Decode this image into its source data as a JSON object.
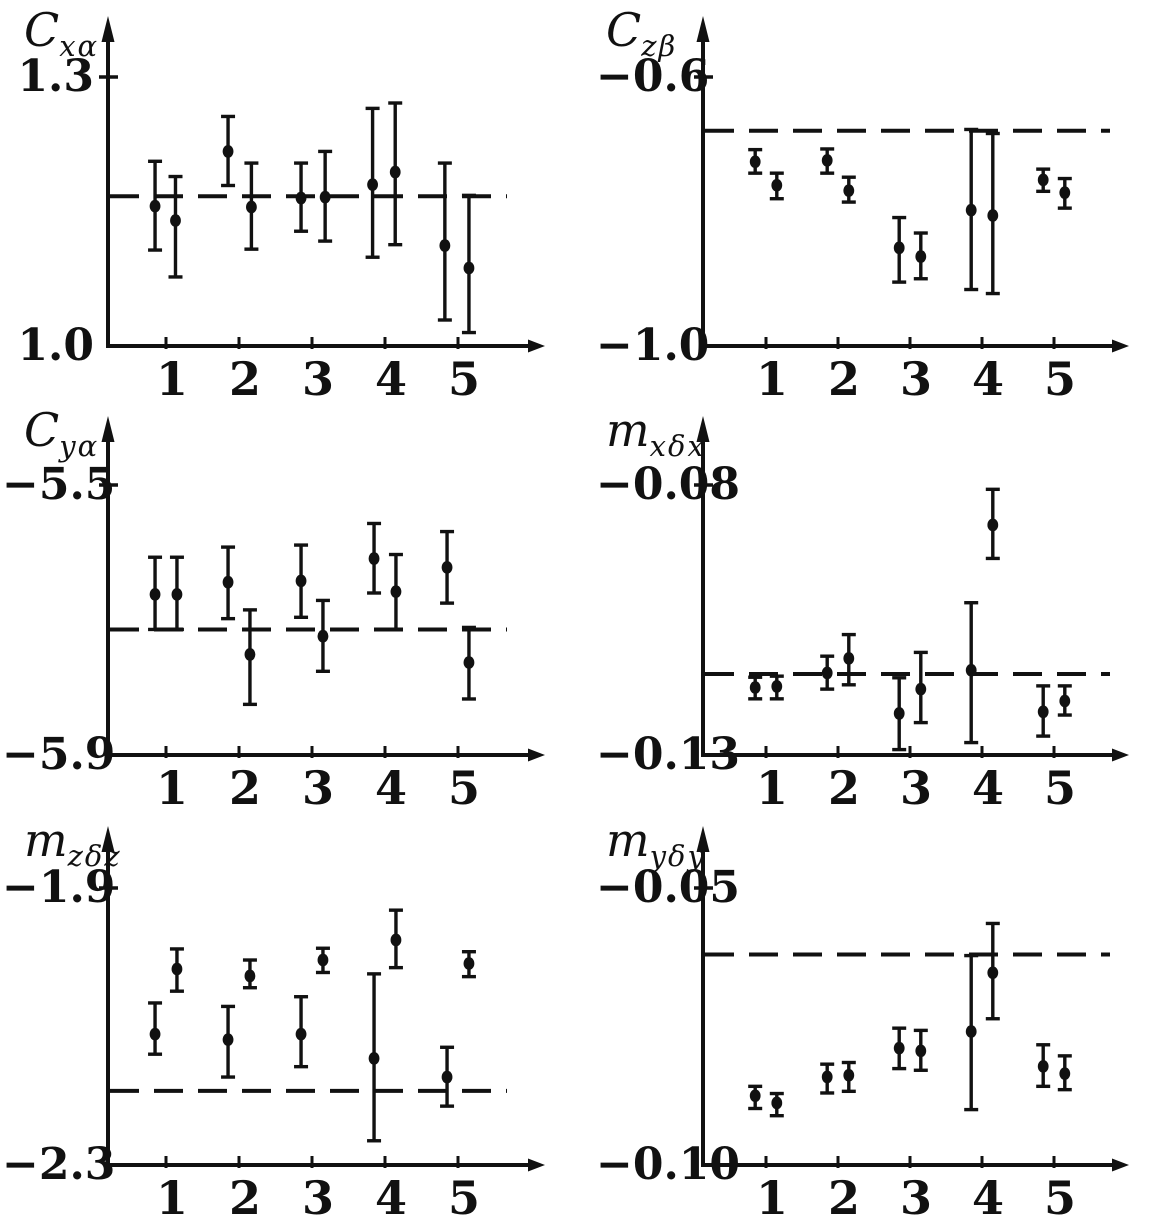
{
  "figure": {
    "description": "Six scanned error-bar scatter plots of aerodynamic coefficients versus run number, each with a dashed horizontal reference line",
    "background": "#ffffff",
    "ink": "#111111",
    "grid": "off",
    "layout": "2 columns x 3 rows",
    "legend": "none"
  },
  "chart_data": [
    {
      "id": "Cxa",
      "type": "scatter",
      "title": "C_xa coefficient with error bars",
      "label_main": "C",
      "label_sub": "xα",
      "y_axis": {
        "top_label": "1.3",
        "top_value": 1.3,
        "bottom_label": "1.0",
        "bottom_value": 1.0
      },
      "x_ticks": [
        "1",
        "2",
        "3",
        "4",
        "5"
      ],
      "dashed_reference": 1.167,
      "points": [
        {
          "x": 0.85,
          "y": 1.156,
          "lo": 1.107,
          "hi": 1.206
        },
        {
          "x": 1.13,
          "y": 1.14,
          "lo": 1.077,
          "hi": 1.189
        },
        {
          "x": 1.85,
          "y": 1.217,
          "lo": 1.179,
          "hi": 1.256
        },
        {
          "x": 2.17,
          "y": 1.155,
          "lo": 1.108,
          "hi": 1.204
        },
        {
          "x": 2.85,
          "y": 1.165,
          "lo": 1.128,
          "hi": 1.204
        },
        {
          "x": 3.18,
          "y": 1.166,
          "lo": 1.117,
          "hi": 1.217
        },
        {
          "x": 3.83,
          "y": 1.18,
          "lo": 1.099,
          "hi": 1.265
        },
        {
          "x": 4.14,
          "y": 1.194,
          "lo": 1.113,
          "hi": 1.271
        },
        {
          "x": 4.82,
          "y": 1.112,
          "lo": 1.029,
          "hi": 1.204
        },
        {
          "x": 5.15,
          "y": 1.087,
          "lo": 1.015,
          "hi": 1.168
        }
      ]
    },
    {
      "id": "Czb",
      "type": "scatter",
      "title": "C_zb coefficient with error bars",
      "label_main": "C",
      "label_sub": "zβ",
      "y_axis": {
        "top_label": "−0.6",
        "top_value": -0.6,
        "bottom_label": "−1.0",
        "bottom_value": -1.0
      },
      "x_ticks": [
        "1",
        "2",
        "3",
        "4",
        "5"
      ],
      "dashed_reference": -0.68,
      "points": [
        {
          "x": 0.85,
          "y": -0.726,
          "lo": -0.743,
          "hi": -0.708
        },
        {
          "x": 1.15,
          "y": -0.761,
          "lo": -0.781,
          "hi": -0.743
        },
        {
          "x": 1.85,
          "y": -0.724,
          "lo": -0.743,
          "hi": -0.707
        },
        {
          "x": 2.15,
          "y": -0.769,
          "lo": -0.786,
          "hi": -0.749
        },
        {
          "x": 2.85,
          "y": -0.854,
          "lo": -0.905,
          "hi": -0.809
        },
        {
          "x": 3.15,
          "y": -0.867,
          "lo": -0.9,
          "hi": -0.832
        },
        {
          "x": 3.85,
          "y": -0.798,
          "lo": -0.916,
          "hi": -0.678
        },
        {
          "x": 4.15,
          "y": -0.806,
          "lo": -0.922,
          "hi": -0.684
        },
        {
          "x": 4.85,
          "y": -0.753,
          "lo": -0.77,
          "hi": -0.737
        },
        {
          "x": 5.15,
          "y": -0.772,
          "lo": -0.795,
          "hi": -0.751
        }
      ]
    },
    {
      "id": "Cya",
      "type": "scatter",
      "title": "C_ya coefficient with error bars",
      "label_main": "C",
      "label_sub": "yα",
      "y_axis": {
        "top_label": "−5.5",
        "top_value": -5.5,
        "bottom_label": "−5.9",
        "bottom_value": -5.9
      },
      "x_ticks": [
        "1",
        "2",
        "3",
        "4",
        "5"
      ],
      "dashed_reference": -5.714,
      "points": [
        {
          "x": 0.85,
          "y": -5.662,
          "lo": -5.714,
          "hi": -5.607
        },
        {
          "x": 1.15,
          "y": -5.662,
          "lo": -5.714,
          "hi": -5.607
        },
        {
          "x": 1.85,
          "y": -5.644,
          "lo": -5.698,
          "hi": -5.592
        },
        {
          "x": 2.15,
          "y": -5.751,
          "lo": -5.825,
          "hi": -5.685
        },
        {
          "x": 2.85,
          "y": -5.642,
          "lo": -5.696,
          "hi": -5.589
        },
        {
          "x": 3.15,
          "y": -5.724,
          "lo": -5.776,
          "hi": -5.671
        },
        {
          "x": 3.85,
          "y": -5.609,
          "lo": -5.66,
          "hi": -5.557
        },
        {
          "x": 4.15,
          "y": -5.658,
          "lo": -5.714,
          "hi": -5.603
        },
        {
          "x": 4.85,
          "y": -5.622,
          "lo": -5.675,
          "hi": -5.569
        },
        {
          "x": 5.15,
          "y": -5.763,
          "lo": -5.817,
          "hi": -5.711
        }
      ]
    },
    {
      "id": "mxdx",
      "type": "scatter",
      "title": "m_x delta x coefficient with error bars",
      "label_main": "m",
      "label_sub": "xδx",
      "y_axis": {
        "top_label": "−0.08",
        "top_value": -0.08,
        "bottom_label": "−0.13",
        "bottom_value": -0.13
      },
      "x_ticks": [
        "1",
        "2",
        "3",
        "4",
        "5"
      ],
      "dashed_reference": -0.115,
      "points": [
        {
          "x": 0.85,
          "y": -0.1175,
          "lo": -0.1196,
          "hi": -0.1156
        },
        {
          "x": 1.15,
          "y": -0.1173,
          "lo": -0.1196,
          "hi": -0.1154
        },
        {
          "x": 1.85,
          "y": -0.1148,
          "lo": -0.1178,
          "hi": -0.1117
        },
        {
          "x": 2.15,
          "y": -0.1121,
          "lo": -0.117,
          "hi": -0.1077
        },
        {
          "x": 2.85,
          "y": -0.1223,
          "lo": -0.129,
          "hi": -0.1157
        },
        {
          "x": 3.15,
          "y": -0.1178,
          "lo": -0.124,
          "hi": -0.111
        },
        {
          "x": 3.85,
          "y": -0.1143,
          "lo": -0.1277,
          "hi": -0.1018
        },
        {
          "x": 4.15,
          "y": -0.0874,
          "lo": -0.0936,
          "hi": -0.0808
        },
        {
          "x": 4.85,
          "y": -0.122,
          "lo": -0.1265,
          "hi": -0.1172
        },
        {
          "x": 5.15,
          "y": -0.12,
          "lo": -0.1226,
          "hi": -0.1172
        }
      ]
    },
    {
      "id": "mzdz",
      "type": "scatter",
      "title": "m_z delta z coefficient with error bars",
      "label_main": "m",
      "label_sub": "zδz",
      "y_axis": {
        "top_label": "−1.9",
        "top_value": -1.9,
        "bottom_label": "−2.3",
        "bottom_value": -2.3
      },
      "x_ticks": [
        "1",
        "2",
        "3",
        "4",
        "5"
      ],
      "dashed_reference": -2.193,
      "points": [
        {
          "x": 0.85,
          "y": -2.111,
          "lo": -2.14,
          "hi": -2.066
        },
        {
          "x": 1.15,
          "y": -2.017,
          "lo": -2.049,
          "hi": -1.988
        },
        {
          "x": 1.85,
          "y": -2.119,
          "lo": -2.173,
          "hi": -2.071
        },
        {
          "x": 2.15,
          "y": -2.027,
          "lo": -2.044,
          "hi": -2.004
        },
        {
          "x": 2.85,
          "y": -2.111,
          "lo": -2.158,
          "hi": -2.057
        },
        {
          "x": 3.15,
          "y": -2.004,
          "lo": -2.022,
          "hi": -1.987
        },
        {
          "x": 3.85,
          "y": -2.146,
          "lo": -2.265,
          "hi": -2.024
        },
        {
          "x": 4.15,
          "y": -1.975,
          "lo": -2.015,
          "hi": -1.932
        },
        {
          "x": 4.85,
          "y": -2.173,
          "lo": -2.215,
          "hi": -2.13
        },
        {
          "x": 5.15,
          "y": -2.009,
          "lo": -2.028,
          "hi": -1.992
        }
      ]
    },
    {
      "id": "mydy",
      "type": "scatter",
      "title": "m_y delta y coefficient with error bars",
      "label_main": "m",
      "label_sub": "yδy",
      "y_axis": {
        "top_label": "−0.05",
        "top_value": -0.05,
        "bottom_label": "−0.10",
        "bottom_value": -0.1
      },
      "x_ticks": [
        "1",
        "2",
        "3",
        "4",
        "5"
      ],
      "dashed_reference": -0.062,
      "points": [
        {
          "x": 0.85,
          "y": -0.0875,
          "lo": -0.0898,
          "hi": -0.0858
        },
        {
          "x": 1.15,
          "y": -0.0888,
          "lo": -0.0911,
          "hi": -0.0871
        },
        {
          "x": 1.85,
          "y": -0.0841,
          "lo": -0.087,
          "hi": -0.0818
        },
        {
          "x": 2.15,
          "y": -0.0838,
          "lo": -0.0867,
          "hi": -0.0815
        },
        {
          "x": 2.85,
          "y": -0.0789,
          "lo": -0.0826,
          "hi": -0.0753
        },
        {
          "x": 3.15,
          "y": -0.0794,
          "lo": -0.0829,
          "hi": -0.0757
        },
        {
          "x": 3.85,
          "y": -0.0759,
          "lo": -0.09,
          "hi": -0.0622
        },
        {
          "x": 4.15,
          "y": -0.0653,
          "lo": -0.0736,
          "hi": -0.0564
        },
        {
          "x": 4.85,
          "y": -0.0822,
          "lo": -0.0858,
          "hi": -0.0783
        },
        {
          "x": 5.15,
          "y": -0.0835,
          "lo": -0.0864,
          "hi": -0.0803
        }
      ]
    }
  ]
}
